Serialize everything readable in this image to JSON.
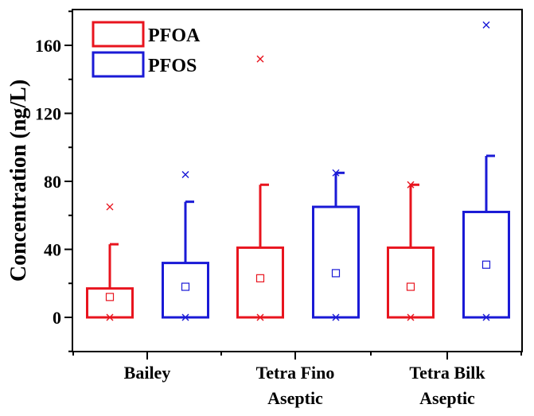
{
  "chart_data": {
    "type": "box",
    "title": "",
    "xlabel": "",
    "ylabel": "Concentration (ng/L)",
    "ylim": [
      -20,
      180
    ],
    "yticks": [
      0,
      40,
      80,
      120,
      160
    ],
    "categories": [
      {
        "lines": [
          "Bailey"
        ]
      },
      {
        "lines": [
          "Tetra Fino",
          "Aseptic"
        ]
      },
      {
        "lines": [
          "Tetra Bilk",
          "Aseptic"
        ]
      }
    ],
    "legend": {
      "position": "top-left"
    },
    "series": [
      {
        "name": "PFOA",
        "color": "#e8141e",
        "boxes": [
          {
            "q1": 0,
            "q3": 17,
            "whisker_high": 43,
            "mean": 12,
            "min": 0,
            "max": 65
          },
          {
            "q1": 0,
            "q3": 41,
            "whisker_high": 78,
            "mean": 23,
            "min": 0,
            "max": 152
          },
          {
            "q1": 0,
            "q3": 41,
            "whisker_high": 78,
            "mean": 18,
            "min": 0,
            "max": 78
          }
        ]
      },
      {
        "name": "PFOS",
        "color": "#1a1ad6",
        "boxes": [
          {
            "q1": 0,
            "q3": 32,
            "whisker_high": 68,
            "mean": 18,
            "min": 0,
            "max": 84
          },
          {
            "q1": 0,
            "q3": 65,
            "whisker_high": 85,
            "mean": 26,
            "min": 0,
            "max": 85
          },
          {
            "q1": 0,
            "q3": 62,
            "whisker_high": 95,
            "mean": 31,
            "min": 0,
            "max": 172
          }
        ]
      }
    ]
  }
}
